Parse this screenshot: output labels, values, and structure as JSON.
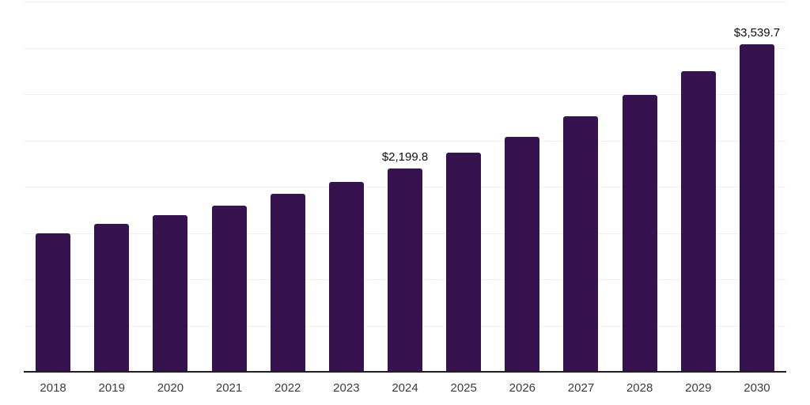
{
  "chart": {
    "background": "#ffffff",
    "bar_color": "#36124f",
    "gridline_color": "#f0f0f1",
    "axis_line_color": "#1f1f1f",
    "x_label_color": "#3c3c3c",
    "data_label_color": "#0d0d0d"
  },
  "chart_data": {
    "type": "bar",
    "title": "",
    "xlabel": "",
    "ylabel": "",
    "categories": [
      "2018",
      "2019",
      "2020",
      "2021",
      "2022",
      "2023",
      "2024",
      "2025",
      "2026",
      "2027",
      "2028",
      "2029",
      "2030"
    ],
    "values": [
      1500,
      1598,
      1692,
      1797,
      1922,
      2053,
      2199.8,
      2366,
      2542,
      2758,
      2994,
      3251,
      3539.7
    ],
    "data_labels": [
      "",
      "",
      "",
      "",
      "",
      "",
      "$2,199.8",
      "",
      "",
      "",
      "",
      "",
      "$3,539.7"
    ],
    "ylim": [
      0,
      4000
    ],
    "gridline_step": 500,
    "grid": true,
    "legend": false,
    "y_axis_tick_labels_visible": false
  }
}
